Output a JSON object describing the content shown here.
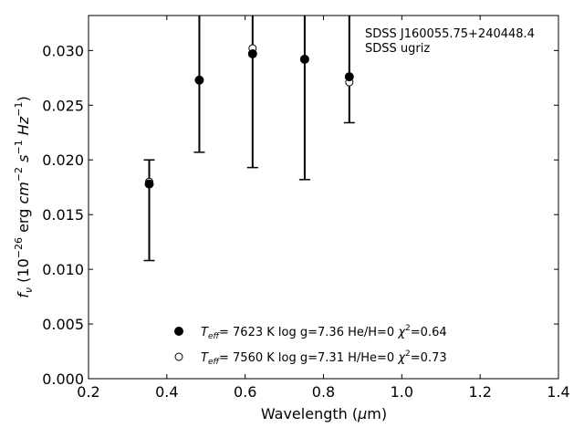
{
  "chart_data": {
    "type": "scatter",
    "annotation": [
      "SDSS J160055.75+240448.4",
      "SDSS ugriz"
    ],
    "xlabel": "Wavelength (μm)",
    "ylabel": "f_ν (10^-26 erg cm^-2 s^-1 Hz^-1)",
    "xlim": [
      0.2,
      1.4
    ],
    "ylim": [
      0.0,
      0.0332
    ],
    "xticks": [
      "0.2",
      "0.4",
      "0.6",
      "0.8",
      "1.0",
      "1.2",
      "1.4"
    ],
    "yticks": [
      "0.000",
      "0.005",
      "0.010",
      "0.015",
      "0.020",
      "0.025",
      "0.030"
    ],
    "observed": {
      "x": [
        0.355,
        0.483,
        0.619,
        0.752,
        0.866
      ],
      "y": [
        0.0178,
        0.0273,
        0.0297,
        0.0292,
        0.0276
      ],
      "yerr_low": [
        0.0108,
        0.0207,
        0.0193,
        0.0182,
        0.0234
      ],
      "yerr_high": [
        0.02,
        0.0332,
        0.0332,
        0.0332,
        0.0332
      ],
      "marker": "filled-circle"
    },
    "model": {
      "x": [
        0.355,
        0.483,
        0.619,
        0.752,
        0.866
      ],
      "y": [
        0.018,
        0.0273,
        0.0302,
        0.0292,
        0.0271
      ],
      "marker": "open-circle"
    },
    "legend": [
      {
        "marker": "filled",
        "teff": "7623 K",
        "logg": "log g=7.36",
        "comp": "He/H=0",
        "chi": "=0.64"
      },
      {
        "marker": "open",
        "teff": "7560 K",
        "logg": "log g=7.31",
        "comp": "H/He=0",
        "chi": "=0.73"
      }
    ],
    "legend_position": "lower-center"
  }
}
